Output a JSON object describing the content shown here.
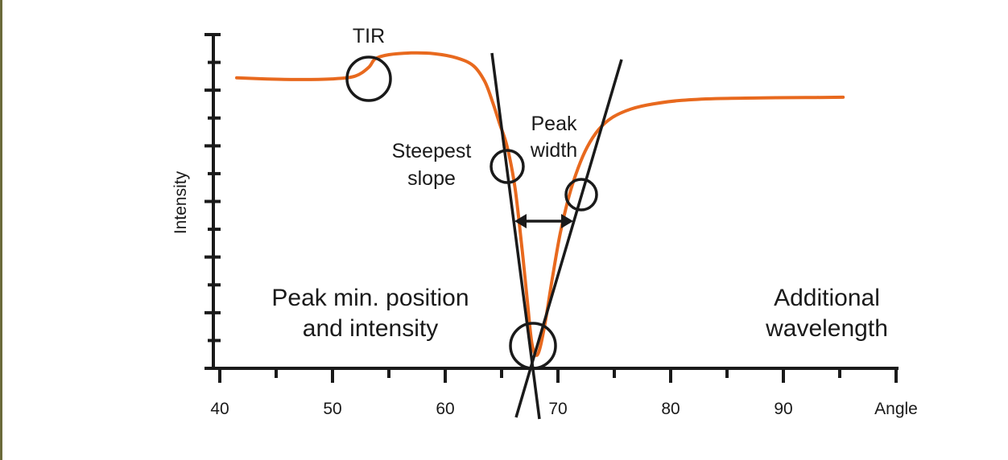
{
  "chart_data": {
    "type": "line",
    "xlabel": "Angle",
    "ylabel": "Intensity",
    "xlim": [
      40,
      100
    ],
    "xticks": [
      "40",
      "50",
      "60",
      "70",
      "80",
      "90"
    ],
    "y_minor_tick_count": 12,
    "grid": false,
    "series": [
      {
        "color": "#e8691e",
        "x": [
          41.5,
          44,
          47,
          50,
          52,
          53.2,
          53.8,
          55,
          57,
          59,
          61,
          62.5,
          63.5,
          64.2,
          64.8,
          65.5,
          66.2,
          66.8,
          67.3,
          67.7,
          68.2,
          68.8,
          69.5,
          70.2,
          71,
          71.8,
          72.6,
          73.6,
          74.8,
          76.5,
          78.5,
          81,
          84,
          88,
          92,
          95.3
        ],
        "y": [
          0.84,
          0.837,
          0.835,
          0.837,
          0.845,
          0.87,
          0.895,
          0.907,
          0.912,
          0.91,
          0.898,
          0.875,
          0.83,
          0.77,
          0.71,
          0.64,
          0.52,
          0.35,
          0.19,
          0.07,
          0.04,
          0.12,
          0.26,
          0.39,
          0.5,
          0.58,
          0.64,
          0.69,
          0.725,
          0.75,
          0.765,
          0.775,
          0.78,
          0.782,
          0.783,
          0.784
        ]
      }
    ]
  },
  "annotations": {
    "tir": "TIR",
    "steepest_line1": "Steepest",
    "steepest_line2": "slope",
    "peak_width_line1": "Peak",
    "peak_width_line2": "width",
    "peak_min_line1": "Peak min. position",
    "peak_min_line2": "and intensity",
    "additional_line1": "Additional",
    "additional_line2": "wavelength"
  },
  "colors": {
    "curve": "#e8691e",
    "axes": "#1a1a1a",
    "edge": "#6b6a3a"
  }
}
